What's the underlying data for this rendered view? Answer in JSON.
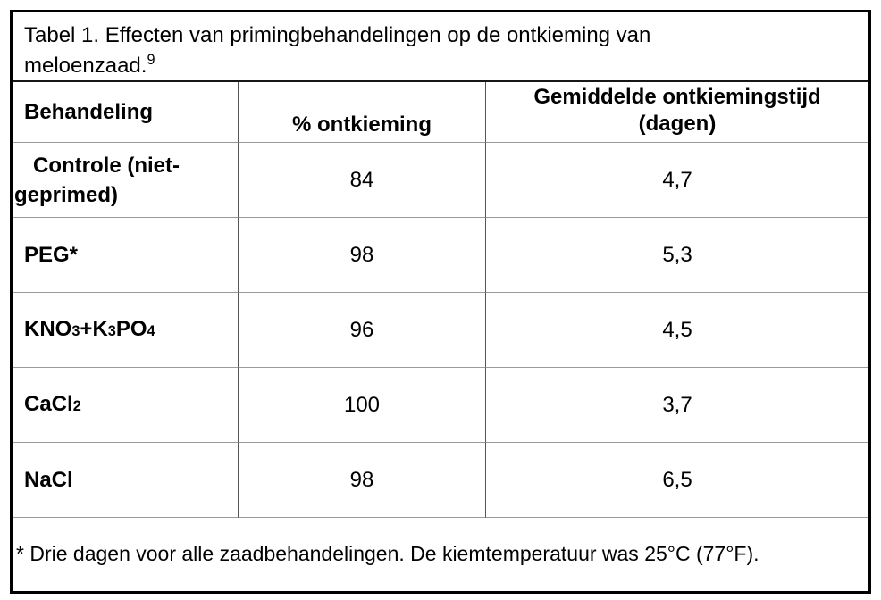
{
  "title": {
    "line1": "Tabel 1. Effecten van primingbehandelingen op de ontkieming van",
    "line2": "meloenzaad.",
    "superscript": "9"
  },
  "table": {
    "header": {
      "col1": "Behandeling",
      "col2": "% ontkieming",
      "col3_line1": "Gemiddelde ontkiemingstijd",
      "col3_line2": "(dagen)"
    },
    "rows": [
      {
        "treatment_parts": [
          "Controle (niet-geprimed)"
        ],
        "germination_pct": "84",
        "mean_time_days": "4,7"
      },
      {
        "treatment_parts": [
          "PEG*"
        ],
        "germination_pct": "98",
        "mean_time_days": "5,3"
      },
      {
        "treatment_parts": [
          "KNO",
          "3",
          "+K",
          "3",
          "PO",
          "4"
        ],
        "germination_pct": "96",
        "mean_time_days": "4,5"
      },
      {
        "treatment_parts": [
          "CaCl",
          "2"
        ],
        "germination_pct": "100",
        "mean_time_days": "3,7"
      },
      {
        "treatment_parts": [
          "NaCl"
        ],
        "germination_pct": "98",
        "mean_time_days": "6,5"
      }
    ]
  },
  "footnote": "* Drie dagen voor alle zaadbehandelingen. De kiemtemperatuur was 25°C (77°F).",
  "colors": {
    "outer_border": "#000000",
    "row_separator": "#9a9a9a",
    "column_separator": "#555555",
    "text": "#000000",
    "background": "#ffffff"
  }
}
